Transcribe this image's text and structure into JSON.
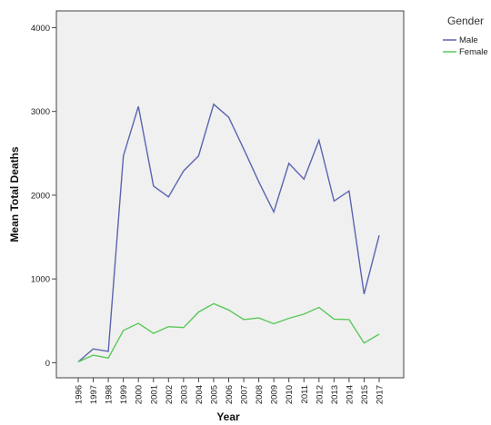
{
  "chart_data": {
    "type": "line",
    "x": [
      "1996",
      "1997",
      "1998",
      "1999",
      "2000",
      "2001",
      "2002",
      "2003",
      "2004",
      "2005",
      "2006",
      "2007",
      "2008",
      "2009",
      "2010",
      "2011",
      "2012",
      "2013",
      "2014",
      "2015",
      "2017"
    ],
    "series": [
      {
        "name": "Male",
        "color": "#5a64b0",
        "values": [
          10,
          165,
          135,
          2470,
          3060,
          2110,
          1980,
          2290,
          2470,
          3085,
          2930,
          2550,
          2160,
          1800,
          2380,
          2190,
          2655,
          1930,
          2050,
          820,
          1520
        ]
      },
      {
        "name": "Female",
        "color": "#5ac85a",
        "values": [
          10,
          90,
          55,
          385,
          470,
          350,
          430,
          420,
          605,
          705,
          630,
          515,
          535,
          465,
          530,
          580,
          660,
          520,
          515,
          235,
          340
        ]
      }
    ],
    "xlabel": "Year",
    "ylabel": "Mean Total Deaths",
    "ylim": [
      -180,
      4200
    ],
    "yticks": [
      0,
      1000,
      2000,
      3000,
      4000
    ],
    "grid": false,
    "legend": {
      "title": "Gender",
      "placement": "top-right"
    },
    "plot_background": "#f0f0f0"
  }
}
